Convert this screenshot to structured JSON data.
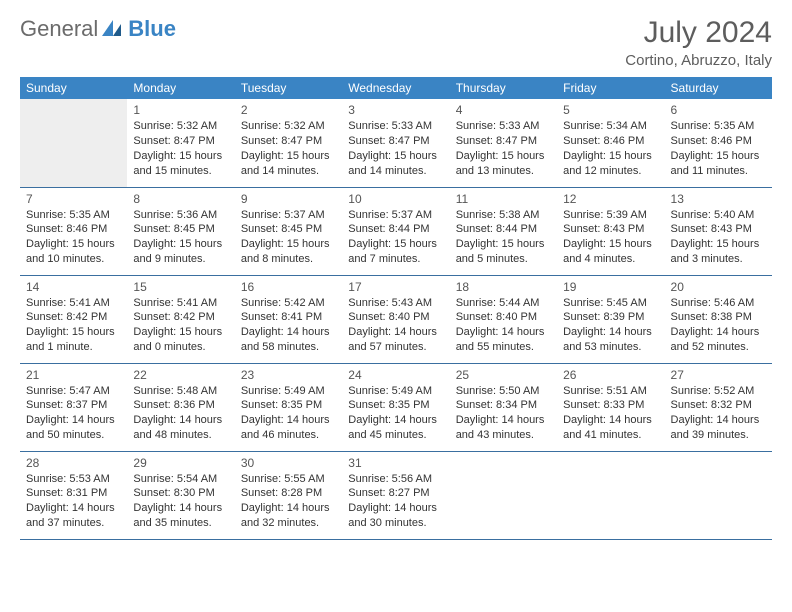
{
  "logo": {
    "text1": "General",
    "text2": "Blue"
  },
  "title": "July 2024",
  "location": "Cortino, Abruzzo, Italy",
  "weekdays": [
    "Sunday",
    "Monday",
    "Tuesday",
    "Wednesday",
    "Thursday",
    "Friday",
    "Saturday"
  ],
  "colors": {
    "header_bg": "#3a84c4",
    "header_text": "#ffffff",
    "border": "#3a6fa0",
    "empty_bg": "#eeeeee",
    "logo_gray": "#6b6b6b",
    "logo_blue": "#3a84c4"
  },
  "weeks": [
    [
      null,
      {
        "d": "1",
        "sr": "Sunrise: 5:32 AM",
        "ss": "Sunset: 8:47 PM",
        "dl": "Daylight: 15 hours and 15 minutes."
      },
      {
        "d": "2",
        "sr": "Sunrise: 5:32 AM",
        "ss": "Sunset: 8:47 PM",
        "dl": "Daylight: 15 hours and 14 minutes."
      },
      {
        "d": "3",
        "sr": "Sunrise: 5:33 AM",
        "ss": "Sunset: 8:47 PM",
        "dl": "Daylight: 15 hours and 14 minutes."
      },
      {
        "d": "4",
        "sr": "Sunrise: 5:33 AM",
        "ss": "Sunset: 8:47 PM",
        "dl": "Daylight: 15 hours and 13 minutes."
      },
      {
        "d": "5",
        "sr": "Sunrise: 5:34 AM",
        "ss": "Sunset: 8:46 PM",
        "dl": "Daylight: 15 hours and 12 minutes."
      },
      {
        "d": "6",
        "sr": "Sunrise: 5:35 AM",
        "ss": "Sunset: 8:46 PM",
        "dl": "Daylight: 15 hours and 11 minutes."
      }
    ],
    [
      {
        "d": "7",
        "sr": "Sunrise: 5:35 AM",
        "ss": "Sunset: 8:46 PM",
        "dl": "Daylight: 15 hours and 10 minutes."
      },
      {
        "d": "8",
        "sr": "Sunrise: 5:36 AM",
        "ss": "Sunset: 8:45 PM",
        "dl": "Daylight: 15 hours and 9 minutes."
      },
      {
        "d": "9",
        "sr": "Sunrise: 5:37 AM",
        "ss": "Sunset: 8:45 PM",
        "dl": "Daylight: 15 hours and 8 minutes."
      },
      {
        "d": "10",
        "sr": "Sunrise: 5:37 AM",
        "ss": "Sunset: 8:44 PM",
        "dl": "Daylight: 15 hours and 7 minutes."
      },
      {
        "d": "11",
        "sr": "Sunrise: 5:38 AM",
        "ss": "Sunset: 8:44 PM",
        "dl": "Daylight: 15 hours and 5 minutes."
      },
      {
        "d": "12",
        "sr": "Sunrise: 5:39 AM",
        "ss": "Sunset: 8:43 PM",
        "dl": "Daylight: 15 hours and 4 minutes."
      },
      {
        "d": "13",
        "sr": "Sunrise: 5:40 AM",
        "ss": "Sunset: 8:43 PM",
        "dl": "Daylight: 15 hours and 3 minutes."
      }
    ],
    [
      {
        "d": "14",
        "sr": "Sunrise: 5:41 AM",
        "ss": "Sunset: 8:42 PM",
        "dl": "Daylight: 15 hours and 1 minute."
      },
      {
        "d": "15",
        "sr": "Sunrise: 5:41 AM",
        "ss": "Sunset: 8:42 PM",
        "dl": "Daylight: 15 hours and 0 minutes."
      },
      {
        "d": "16",
        "sr": "Sunrise: 5:42 AM",
        "ss": "Sunset: 8:41 PM",
        "dl": "Daylight: 14 hours and 58 minutes."
      },
      {
        "d": "17",
        "sr": "Sunrise: 5:43 AM",
        "ss": "Sunset: 8:40 PM",
        "dl": "Daylight: 14 hours and 57 minutes."
      },
      {
        "d": "18",
        "sr": "Sunrise: 5:44 AM",
        "ss": "Sunset: 8:40 PM",
        "dl": "Daylight: 14 hours and 55 minutes."
      },
      {
        "d": "19",
        "sr": "Sunrise: 5:45 AM",
        "ss": "Sunset: 8:39 PM",
        "dl": "Daylight: 14 hours and 53 minutes."
      },
      {
        "d": "20",
        "sr": "Sunrise: 5:46 AM",
        "ss": "Sunset: 8:38 PM",
        "dl": "Daylight: 14 hours and 52 minutes."
      }
    ],
    [
      {
        "d": "21",
        "sr": "Sunrise: 5:47 AM",
        "ss": "Sunset: 8:37 PM",
        "dl": "Daylight: 14 hours and 50 minutes."
      },
      {
        "d": "22",
        "sr": "Sunrise: 5:48 AM",
        "ss": "Sunset: 8:36 PM",
        "dl": "Daylight: 14 hours and 48 minutes."
      },
      {
        "d": "23",
        "sr": "Sunrise: 5:49 AM",
        "ss": "Sunset: 8:35 PM",
        "dl": "Daylight: 14 hours and 46 minutes."
      },
      {
        "d": "24",
        "sr": "Sunrise: 5:49 AM",
        "ss": "Sunset: 8:35 PM",
        "dl": "Daylight: 14 hours and 45 minutes."
      },
      {
        "d": "25",
        "sr": "Sunrise: 5:50 AM",
        "ss": "Sunset: 8:34 PM",
        "dl": "Daylight: 14 hours and 43 minutes."
      },
      {
        "d": "26",
        "sr": "Sunrise: 5:51 AM",
        "ss": "Sunset: 8:33 PM",
        "dl": "Daylight: 14 hours and 41 minutes."
      },
      {
        "d": "27",
        "sr": "Sunrise: 5:52 AM",
        "ss": "Sunset: 8:32 PM",
        "dl": "Daylight: 14 hours and 39 minutes."
      }
    ],
    [
      {
        "d": "28",
        "sr": "Sunrise: 5:53 AM",
        "ss": "Sunset: 8:31 PM",
        "dl": "Daylight: 14 hours and 37 minutes."
      },
      {
        "d": "29",
        "sr": "Sunrise: 5:54 AM",
        "ss": "Sunset: 8:30 PM",
        "dl": "Daylight: 14 hours and 35 minutes."
      },
      {
        "d": "30",
        "sr": "Sunrise: 5:55 AM",
        "ss": "Sunset: 8:28 PM",
        "dl": "Daylight: 14 hours and 32 minutes."
      },
      {
        "d": "31",
        "sr": "Sunrise: 5:56 AM",
        "ss": "Sunset: 8:27 PM",
        "dl": "Daylight: 14 hours and 30 minutes."
      },
      null,
      null,
      null
    ]
  ]
}
